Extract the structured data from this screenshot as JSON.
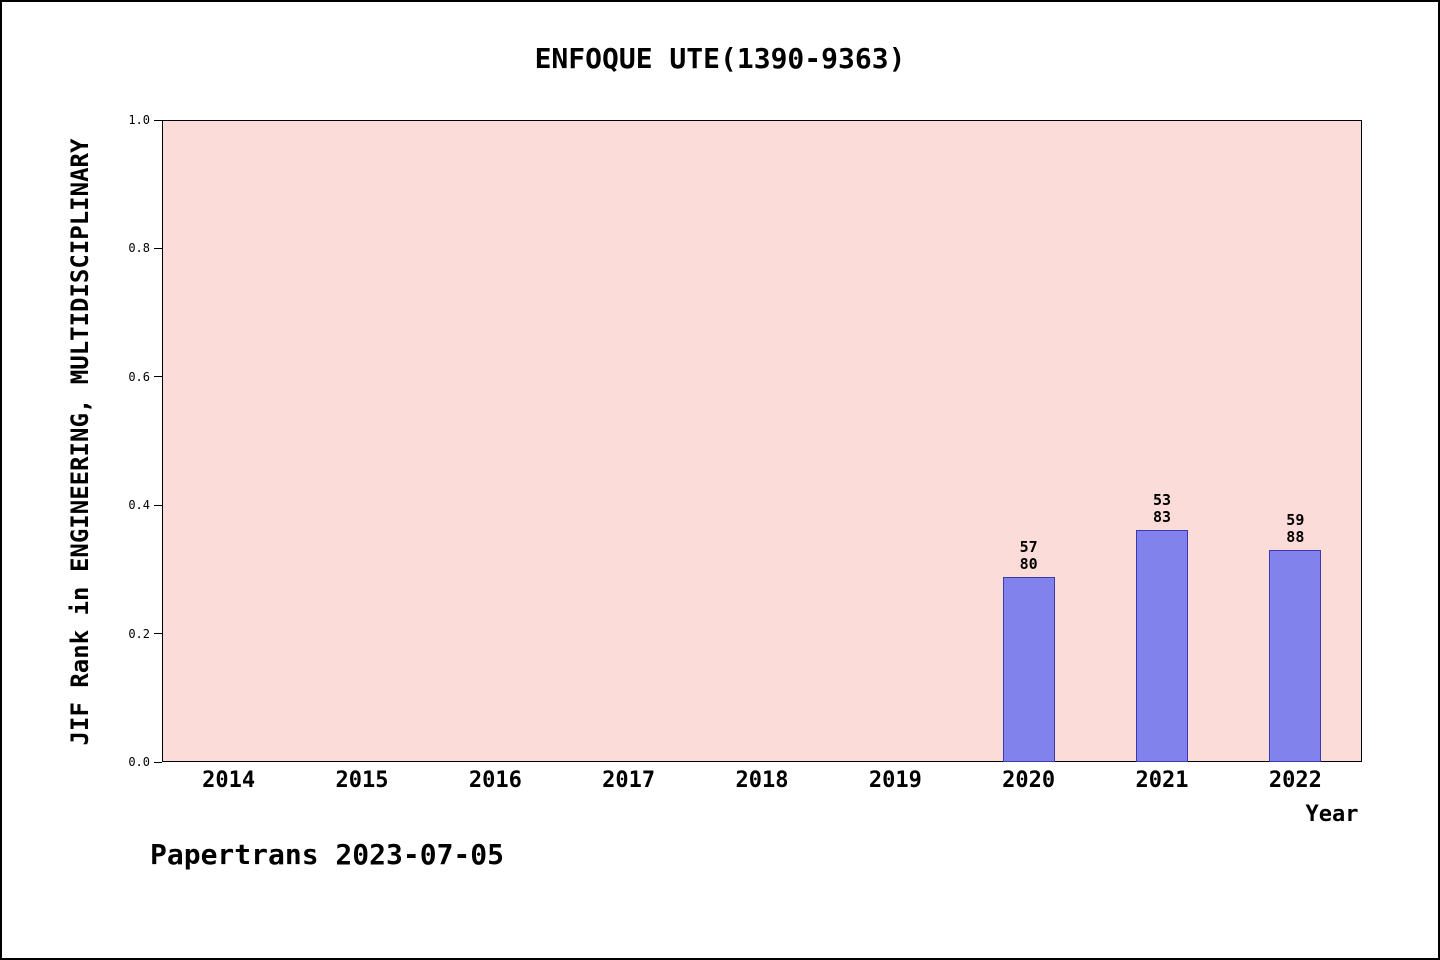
{
  "footer": "Papertrans 2023-07-05",
  "chart_data": {
    "type": "bar",
    "title": "ENFOQUE UTE(1390-9363)",
    "xlabel": "Year",
    "ylabel": "JIF Rank in ENGINEERING, MULTIDISCIPLINARY",
    "categories": [
      "2014",
      "2015",
      "2016",
      "2017",
      "2018",
      "2019",
      "2020",
      "2021",
      "2022"
    ],
    "values": [
      null,
      null,
      null,
      null,
      null,
      null,
      0.2875,
      0.3614,
      0.3295
    ],
    "bars": [
      {
        "category": "2020",
        "rank": "57",
        "total": "80",
        "value": 0.2875
      },
      {
        "category": "2021",
        "rank": "53",
        "total": "83",
        "value": 0.3614
      },
      {
        "category": "2022",
        "rank": "59",
        "total": "88",
        "value": 0.3295
      }
    ],
    "yticks": [
      0.0,
      0.2,
      0.4,
      0.6,
      0.8,
      1.0
    ],
    "ylim": [
      0,
      1
    ],
    "grid": false,
    "legend": "none",
    "colors": {
      "bar_fill": "#8282ec",
      "bar_edge": "#3a3aae",
      "plot_bg": "#fbdcd8",
      "page_bg": "#ffffff",
      "axis": "#000000"
    }
  }
}
